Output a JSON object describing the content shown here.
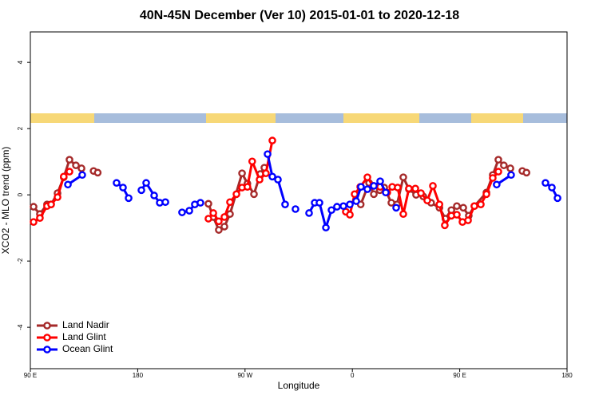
{
  "chart_data": {
    "type": "line",
    "title": "40N-45N December (Ver 10)   2015-01-01 to 2020-12-18",
    "x_label": "Longitude",
    "y_label": "XCO2 - MLO trend (ppm)",
    "xlim": [
      90,
      540
    ],
    "xticks": [
      {
        "value": 90,
        "label": "90 E"
      },
      {
        "value": 180,
        "label": "180"
      },
      {
        "value": 270,
        "label": "90 W"
      },
      {
        "value": 360,
        "label": "0"
      },
      {
        "value": 450,
        "label": "90 E"
      },
      {
        "value": 540,
        "label": "180"
      }
    ],
    "ylim": [
      -5.25,
      4.92
    ],
    "yticks": [
      -4,
      -2,
      0,
      2,
      4
    ],
    "legend": "bottom-left",
    "series": [
      {
        "name": "Land Nadir",
        "color": "#a52a2a",
        "x": [
          92.7,
          98,
          104,
          107.4,
          112.8,
          118,
          122.8,
          128.2,
          132.9,
          null,
          143,
          146.5,
          null,
          239.3,
          243.4,
          248,
          252.7,
          257.4,
          267.5,
          272,
          277.5,
          282.8,
          286.2,
          null,
          367,
          374,
          378,
          383,
          386.7,
          392.7,
          397.4,
          402.7,
          407.4,
          413.4,
          419.5,
          426,
          433,
          438,
          443,
          447.6,
          453,
          457.6,
          462.3,
          472.4,
          477.7,
          482.4,
          487,
          492.5,
          null,
          502.5,
          506
        ],
        "values": [
          -0.36,
          -0.58,
          -0.29,
          -0.29,
          0.05,
          0.53,
          1.06,
          0.89,
          0.8,
          null,
          0.72,
          0.67,
          null,
          -0.27,
          -0.67,
          -1.06,
          -0.96,
          -0.58,
          0.65,
          0.34,
          0.02,
          0.63,
          0.82,
          null,
          -0.29,
          0.36,
          0.02,
          0.14,
          0.22,
          -0.24,
          -0.29,
          0.53,
          0.17,
          0,
          -0.05,
          -0.24,
          -0.39,
          -0.72,
          -0.46,
          -0.34,
          -0.39,
          -0.63,
          -0.34,
          0.07,
          0.6,
          1.06,
          0.89,
          0.8,
          null,
          0.72,
          0.67
        ]
      },
      {
        "name": "Land Glint",
        "color": "#ff0000",
        "x": [
          92.7,
          98,
          104,
          107.4,
          112.8,
          118,
          122.8,
          null,
          239.3,
          243.4,
          248,
          252.7,
          257.4,
          262.8,
          267.5,
          272,
          276,
          282.2,
          287.5,
          292.9,
          null,
          354.5,
          357.9,
          361.9,
          366.6,
          372.6,
          377.3,
          383.3,
          389.3,
          393.4,
          398,
          402.7,
          407.4,
          412.8,
          417.5,
          422.8,
          427.5,
          433,
          437.5,
          443,
          447.6,
          452.3,
          457,
          462.3,
          467.7,
          472.4,
          477.7,
          482.4
        ],
        "values": [
          -0.82,
          -0.7,
          -0.34,
          -0.29,
          -0.07,
          0.55,
          0.7,
          null,
          -0.72,
          -0.55,
          -0.8,
          -0.67,
          -0.22,
          0.02,
          0.22,
          0.24,
          1.01,
          0.46,
          0.65,
          1.64,
          null,
          -0.51,
          -0.6,
          0.02,
          0.24,
          0.53,
          0.27,
          0.24,
          0.07,
          0.24,
          0.22,
          -0.58,
          0.19,
          0.19,
          0.05,
          -0.17,
          0.27,
          -0.29,
          -0.92,
          -0.63,
          -0.6,
          -0.82,
          -0.77,
          -0.34,
          -0.29,
          0.02,
          0.51,
          0.7
        ]
      },
      {
        "name": "Ocean Glint",
        "color": "#0000ff",
        "x": [
          121.5,
          133.5,
          null,
          162.3,
          167.7,
          172.4,
          null,
          183.1,
          187.1,
          193.8,
          198.5,
          203.2,
          null,
          217.2,
          223.3,
          227.9,
          232.6,
          null,
          288.9,
          292.9,
          297.6,
          303.6,
          null,
          312.3,
          null,
          323.7,
          328.4,
          332.4,
          337.8,
          342.5,
          347.1,
          352.5,
          357.9,
          363.2,
          367.2,
          372.6,
          378,
          383.3,
          388,
          null,
          396.7,
          null,
          481,
          493.1,
          null,
          521.9,
          527.3,
          532
        ],
        "values": [
          0.31,
          0.6,
          null,
          0.36,
          0.22,
          -0.1,
          null,
          0.14,
          0.36,
          -0.02,
          -0.24,
          -0.22,
          null,
          -0.53,
          -0.48,
          -0.29,
          -0.24,
          null,
          1.23,
          0.55,
          0.46,
          -0.29,
          null,
          -0.43,
          null,
          -0.55,
          -0.24,
          -0.24,
          -0.99,
          -0.46,
          -0.36,
          -0.34,
          -0.29,
          -0.19,
          0.24,
          0.17,
          0.27,
          0.41,
          0.07,
          null,
          -0.39,
          null,
          0.31,
          0.6,
          null,
          0.36,
          0.22,
          -0.1
        ]
      }
    ]
  }
}
